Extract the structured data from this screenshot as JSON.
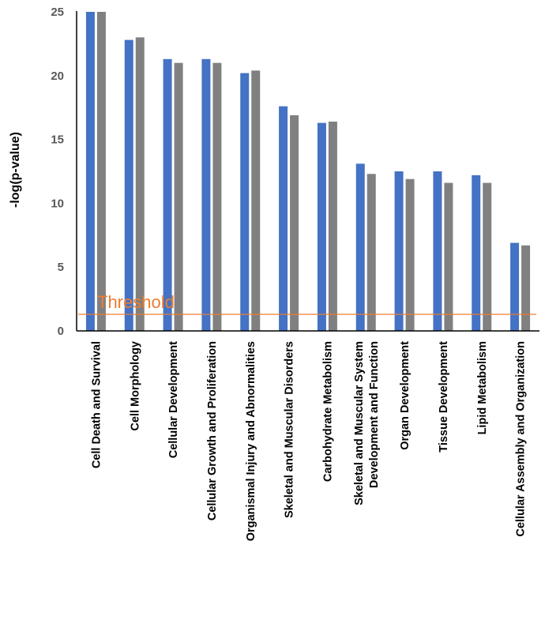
{
  "chart_data": {
    "type": "bar",
    "title": "",
    "xlabel": "",
    "ylabel": "-log(p-value)",
    "ylim": [
      0,
      25
    ],
    "yticks": [
      0,
      5,
      10,
      15,
      20,
      25
    ],
    "grid": false,
    "legend": "none",
    "categories": [
      [
        "Cell Death and Survival"
      ],
      [
        "Cell Morphology"
      ],
      [
        "Cellular Development"
      ],
      [
        "Cellular Growth and Proliferation"
      ],
      [
        "Organismal Injury and Abnormalities"
      ],
      [
        "Skeletal and Muscular Disorders"
      ],
      [
        "Carbohydrate Metabolism"
      ],
      [
        "Skeletal and Muscular System",
        "Development and Function"
      ],
      [
        "Organ Development"
      ],
      [
        "Tissue Development"
      ],
      [
        "Lipid Metabolism"
      ],
      [
        "Cellular Assembly and Organization"
      ]
    ],
    "series": [
      {
        "color": "#4472c4",
        "values": [
          25,
          22.8,
          21.3,
          21.3,
          20.2,
          17.6,
          16.3,
          13.1,
          12.5,
          12.5,
          12.2,
          6.9
        ]
      },
      {
        "color": "#808080",
        "values": [
          25,
          23.0,
          21.0,
          21.0,
          20.4,
          16.9,
          16.4,
          12.3,
          11.9,
          11.6,
          11.6,
          6.7
        ]
      }
    ],
    "threshold": {
      "label": "Threshold",
      "value": 1.3,
      "color": "#ed7d31"
    }
  }
}
